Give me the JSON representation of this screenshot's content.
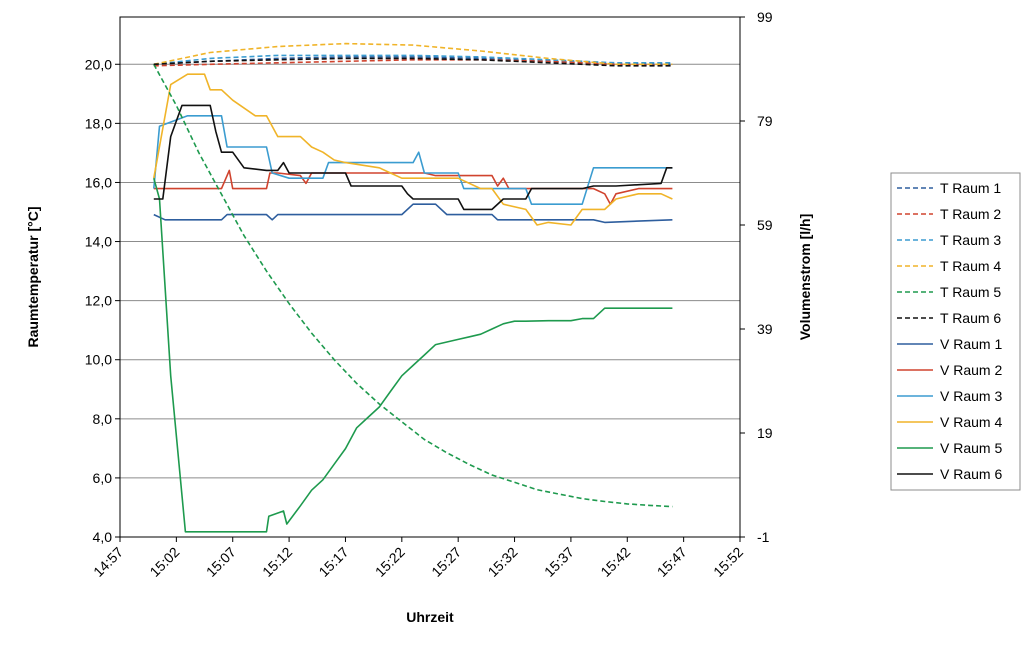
{
  "chart_data": {
    "type": "line",
    "title": "",
    "xlabel": "Uhrzeit",
    "ylabel": "Raumtemperatur [°C]",
    "y2label": "Volumenstrom [l/h]",
    "x_ticks": [
      "14:57",
      "15:02",
      "15:07",
      "15:12",
      "15:17",
      "15:22",
      "15:27",
      "15:32",
      "15:37",
      "15:42",
      "15:47",
      "15:52"
    ],
    "xlim": [
      0,
      55
    ],
    "y_ticks": [
      "4,0",
      "6,0",
      "8,0",
      "10,0",
      "12,0",
      "14,0",
      "16,0",
      "18,0",
      "20,0"
    ],
    "ylim": [
      4,
      21.6
    ],
    "y2_ticks": [
      "-1",
      "19",
      "39",
      "59",
      "79",
      "99"
    ],
    "y2lim": [
      -1,
      99
    ],
    "grid": "horizontal",
    "legend_position": "right",
    "series": [
      {
        "name": "T Raum 1",
        "axis": "left",
        "style": "dashed",
        "color": "#2e5e9e",
        "points": [
          [
            3,
            20.0
          ],
          [
            8,
            20.1
          ],
          [
            14,
            20.2
          ],
          [
            20,
            20.25
          ],
          [
            26,
            20.25
          ],
          [
            32,
            20.2
          ],
          [
            38,
            20.1
          ],
          [
            44,
            20.0
          ],
          [
            49,
            20.0
          ]
        ]
      },
      {
        "name": "T Raum 2",
        "axis": "left",
        "style": "dashed",
        "color": "#d0432e",
        "points": [
          [
            3,
            19.95
          ],
          [
            8,
            20.0
          ],
          [
            14,
            20.05
          ],
          [
            20,
            20.1
          ],
          [
            26,
            20.15
          ],
          [
            32,
            20.15
          ],
          [
            38,
            20.1
          ],
          [
            44,
            20.0
          ],
          [
            49,
            19.95
          ]
        ]
      },
      {
        "name": "T Raum 3",
        "axis": "left",
        "style": "dashed",
        "color": "#3b9cd0",
        "points": [
          [
            3,
            20.0
          ],
          [
            8,
            20.2
          ],
          [
            14,
            20.3
          ],
          [
            20,
            20.3
          ],
          [
            26,
            20.3
          ],
          [
            32,
            20.25
          ],
          [
            38,
            20.15
          ],
          [
            44,
            20.05
          ],
          [
            49,
            20.05
          ]
        ]
      },
      {
        "name": "T Raum 4",
        "axis": "left",
        "style": "dashed",
        "color": "#f0b429",
        "points": [
          [
            3,
            20.0
          ],
          [
            8,
            20.4
          ],
          [
            14,
            20.6
          ],
          [
            20,
            20.7
          ],
          [
            26,
            20.65
          ],
          [
            32,
            20.45
          ],
          [
            38,
            20.2
          ],
          [
            44,
            20.0
          ],
          [
            49,
            20.0
          ]
        ]
      },
      {
        "name": "T Raum 5",
        "axis": "left",
        "style": "dashed",
        "color": "#1e9a4e",
        "points": [
          [
            3,
            20.0
          ],
          [
            5,
            18.6
          ],
          [
            7,
            17.0
          ],
          [
            9,
            15.6
          ],
          [
            11,
            14.2
          ],
          [
            13,
            13.0
          ],
          [
            15,
            11.9
          ],
          [
            17,
            10.9
          ],
          [
            19,
            10.0
          ],
          [
            21,
            9.2
          ],
          [
            23,
            8.5
          ],
          [
            25,
            7.9
          ],
          [
            27,
            7.3
          ],
          [
            29,
            6.85
          ],
          [
            31,
            6.45
          ],
          [
            33,
            6.1
          ],
          [
            35,
            5.85
          ],
          [
            37,
            5.6
          ],
          [
            39,
            5.45
          ],
          [
            41,
            5.3
          ],
          [
            43,
            5.2
          ],
          [
            45,
            5.12
          ],
          [
            47,
            5.07
          ],
          [
            49,
            5.03
          ]
        ]
      },
      {
        "name": "T Raum 6",
        "axis": "left",
        "style": "dashed",
        "color": "#111111",
        "points": [
          [
            3,
            20.0
          ],
          [
            8,
            20.1
          ],
          [
            14,
            20.15
          ],
          [
            20,
            20.2
          ],
          [
            26,
            20.2
          ],
          [
            32,
            20.15
          ],
          [
            38,
            20.05
          ],
          [
            44,
            19.95
          ],
          [
            49,
            19.95
          ]
        ]
      },
      {
        "name": "V Raum 1",
        "axis": "right",
        "style": "solid",
        "color": "#2e5e9e",
        "points": [
          [
            3,
            61
          ],
          [
            4,
            60
          ],
          [
            9,
            60
          ],
          [
            9.5,
            61
          ],
          [
            13,
            61
          ],
          [
            13.5,
            60
          ],
          [
            14,
            61
          ],
          [
            25,
            61
          ],
          [
            26,
            63
          ],
          [
            28,
            63
          ],
          [
            29,
            61
          ],
          [
            33,
            61
          ],
          [
            33.5,
            60
          ],
          [
            42,
            60
          ],
          [
            43,
            59.5
          ],
          [
            49,
            60
          ]
        ]
      },
      {
        "name": "V Raum 2",
        "axis": "right",
        "style": "solid",
        "color": "#d0432e",
        "points": [
          [
            3,
            66
          ],
          [
            7,
            66
          ],
          [
            9,
            66
          ],
          [
            9.7,
            69.5
          ],
          [
            10,
            66
          ],
          [
            13,
            66
          ],
          [
            13.3,
            69
          ],
          [
            14,
            69
          ],
          [
            16,
            68.5
          ],
          [
            16.5,
            67
          ],
          [
            17,
            69
          ],
          [
            27,
            69
          ],
          [
            28,
            68.5
          ],
          [
            33,
            68.5
          ],
          [
            33.5,
            66.5
          ],
          [
            34,
            68
          ],
          [
            34.5,
            66
          ],
          [
            35,
            66
          ],
          [
            42,
            66
          ],
          [
            43,
            65
          ],
          [
            43.5,
            63
          ],
          [
            44,
            65
          ],
          [
            46,
            66
          ],
          [
            49,
            66
          ]
        ]
      },
      {
        "name": "V Raum 3",
        "axis": "right",
        "style": "solid",
        "color": "#3b9cd0",
        "points": [
          [
            3,
            66
          ],
          [
            3.5,
            78
          ],
          [
            6,
            80
          ],
          [
            9,
            80
          ],
          [
            9.5,
            74
          ],
          [
            13,
            74
          ],
          [
            13.5,
            69
          ],
          [
            15,
            68
          ],
          [
            18,
            68
          ],
          [
            18.5,
            71
          ],
          [
            22,
            71
          ],
          [
            26,
            71
          ],
          [
            26.5,
            73
          ],
          [
            27,
            69
          ],
          [
            30,
            69
          ],
          [
            30.5,
            66
          ],
          [
            36,
            66
          ],
          [
            36.5,
            63
          ],
          [
            41,
            63
          ],
          [
            42,
            70
          ],
          [
            49,
            70
          ]
        ]
      },
      {
        "name": "V Raum 4",
        "axis": "right",
        "style": "solid",
        "color": "#f0b429",
        "points": [
          [
            3,
            68
          ],
          [
            4.5,
            86
          ],
          [
            6,
            88
          ],
          [
            7.5,
            88
          ],
          [
            8,
            85
          ],
          [
            9,
            85
          ],
          [
            10,
            83
          ],
          [
            12,
            80
          ],
          [
            13,
            80
          ],
          [
            14,
            76
          ],
          [
            15,
            76
          ],
          [
            16,
            76
          ],
          [
            17,
            74
          ],
          [
            18,
            73
          ],
          [
            19,
            71.5
          ],
          [
            20,
            71
          ],
          [
            23,
            70
          ],
          [
            24,
            69
          ],
          [
            25,
            68
          ],
          [
            30,
            68
          ],
          [
            32,
            66
          ],
          [
            33,
            66
          ],
          [
            34,
            63
          ],
          [
            36,
            62
          ],
          [
            37,
            59
          ],
          [
            38,
            59.5
          ],
          [
            40,
            59
          ],
          [
            41,
            62
          ],
          [
            43,
            62
          ],
          [
            44,
            64
          ],
          [
            46,
            65
          ],
          [
            48,
            65
          ],
          [
            49,
            64
          ]
        ]
      },
      {
        "name": "V Raum 5",
        "axis": "right",
        "style": "solid",
        "color": "#1e9a4e",
        "points": [
          [
            3,
            68
          ],
          [
            3.5,
            64
          ],
          [
            4.5,
            30
          ],
          [
            5.8,
            0
          ],
          [
            13,
            0
          ],
          [
            13.2,
            3
          ],
          [
            14.5,
            4
          ],
          [
            14.8,
            1.5
          ],
          [
            16,
            5
          ],
          [
            17,
            8
          ],
          [
            18,
            10
          ],
          [
            19,
            13
          ],
          [
            20,
            16
          ],
          [
            21,
            20
          ],
          [
            22,
            22
          ],
          [
            23,
            24
          ],
          [
            24,
            27
          ],
          [
            25,
            30
          ],
          [
            26,
            32
          ],
          [
            27,
            34
          ],
          [
            28,
            36
          ],
          [
            29,
            36.5
          ],
          [
            30,
            37
          ],
          [
            31,
            37.5
          ],
          [
            32,
            38
          ],
          [
            33,
            39
          ],
          [
            34,
            40
          ],
          [
            35,
            40.5
          ],
          [
            36,
            40.5
          ],
          [
            38,
            40.6
          ],
          [
            40,
            40.6
          ],
          [
            41,
            41
          ],
          [
            42,
            41
          ],
          [
            43,
            43
          ],
          [
            46,
            43
          ],
          [
            49,
            43
          ]
        ]
      },
      {
        "name": "V Raum 6",
        "axis": "right",
        "style": "solid",
        "color": "#111111",
        "points": [
          [
            3,
            64
          ],
          [
            3.8,
            64
          ],
          [
            4.5,
            76
          ],
          [
            5.5,
            82
          ],
          [
            8,
            82
          ],
          [
            8.5,
            77
          ],
          [
            9,
            73
          ],
          [
            10,
            73
          ],
          [
            11,
            70
          ],
          [
            13,
            69.5
          ],
          [
            14,
            69.5
          ],
          [
            14.5,
            71
          ],
          [
            15,
            69
          ],
          [
            20,
            69
          ],
          [
            20.5,
            66.5
          ],
          [
            25,
            66.5
          ],
          [
            25.5,
            65
          ],
          [
            26,
            64
          ],
          [
            30,
            64
          ],
          [
            30.5,
            62
          ],
          [
            33,
            62
          ],
          [
            34,
            64
          ],
          [
            36,
            64
          ],
          [
            36.5,
            66
          ],
          [
            41,
            66
          ],
          [
            42,
            66.5
          ],
          [
            44,
            66.5
          ],
          [
            48,
            67
          ],
          [
            48.5,
            70
          ],
          [
            49,
            70
          ]
        ]
      }
    ]
  }
}
